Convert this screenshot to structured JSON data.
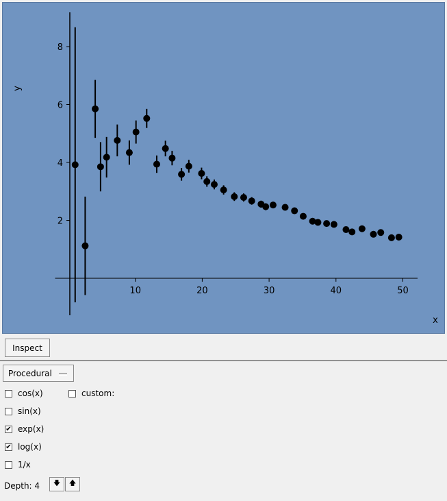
{
  "chart_data": {
    "type": "scatter",
    "error_bars": true,
    "xlabel": "x",
    "ylabel": "y",
    "xlim": [
      -2,
      52
    ],
    "ylim": [
      -1.3,
      9.2
    ],
    "xticks": [
      10,
      20,
      30,
      40,
      50
    ],
    "yticks": [
      2,
      4,
      6,
      8
    ],
    "grid": false,
    "points": [
      {
        "x": 1.0,
        "y": 3.92,
        "err": 4.75
      },
      {
        "x": 2.5,
        "y": 1.12,
        "err": 1.7
      },
      {
        "x": 4.0,
        "y": 5.85,
        "err": 1.0
      },
      {
        "x": 4.8,
        "y": 3.85,
        "err": 0.85
      },
      {
        "x": 5.7,
        "y": 4.18,
        "err": 0.7
      },
      {
        "x": 7.3,
        "y": 4.76,
        "err": 0.55
      },
      {
        "x": 9.1,
        "y": 4.34,
        "err": 0.42
      },
      {
        "x": 10.1,
        "y": 5.05,
        "err": 0.4
      },
      {
        "x": 11.7,
        "y": 5.52,
        "err": 0.33
      },
      {
        "x": 13.2,
        "y": 3.94,
        "err": 0.3
      },
      {
        "x": 14.5,
        "y": 4.48,
        "err": 0.27
      },
      {
        "x": 15.5,
        "y": 4.15,
        "err": 0.25
      },
      {
        "x": 16.9,
        "y": 3.59,
        "err": 0.22
      },
      {
        "x": 18.0,
        "y": 3.87,
        "err": 0.22
      },
      {
        "x": 19.9,
        "y": 3.62,
        "err": 0.2
      },
      {
        "x": 20.7,
        "y": 3.34,
        "err": 0.18
      },
      {
        "x": 21.8,
        "y": 3.24,
        "err": 0.17
      },
      {
        "x": 23.2,
        "y": 3.05,
        "err": 0.16
      },
      {
        "x": 24.8,
        "y": 2.82,
        "err": 0.15
      },
      {
        "x": 26.2,
        "y": 2.79,
        "err": 0.14
      },
      {
        "x": 27.4,
        "y": 2.67,
        "err": 0.13
      },
      {
        "x": 28.8,
        "y": 2.56,
        "err": 0.12
      },
      {
        "x": 29.5,
        "y": 2.47,
        "err": 0.12
      },
      {
        "x": 30.6,
        "y": 2.53,
        "err": 0.11
      },
      {
        "x": 32.4,
        "y": 2.45,
        "err": 0.1
      },
      {
        "x": 33.8,
        "y": 2.33,
        "err": 0.1
      },
      {
        "x": 35.1,
        "y": 2.14,
        "err": 0.09
      },
      {
        "x": 36.5,
        "y": 1.97,
        "err": 0.09
      },
      {
        "x": 37.3,
        "y": 1.93,
        "err": 0.08
      },
      {
        "x": 38.6,
        "y": 1.89,
        "err": 0.08
      },
      {
        "x": 39.7,
        "y": 1.86,
        "err": 0.08
      },
      {
        "x": 41.5,
        "y": 1.68,
        "err": 0.07
      },
      {
        "x": 42.4,
        "y": 1.6,
        "err": 0.07
      },
      {
        "x": 43.9,
        "y": 1.71,
        "err": 0.07
      },
      {
        "x": 45.6,
        "y": 1.52,
        "err": 0.06
      },
      {
        "x": 46.7,
        "y": 1.58,
        "err": 0.06
      },
      {
        "x": 48.3,
        "y": 1.4,
        "err": 0.06
      },
      {
        "x": 49.4,
        "y": 1.42,
        "err": 0.06
      }
    ]
  },
  "controls": {
    "inspect_label": "Inspect",
    "mode": "Procedural",
    "checkboxes": [
      {
        "label": "cos(x)",
        "checked": false
      },
      {
        "label": "sin(x)",
        "checked": false
      },
      {
        "label": "exp(x)",
        "checked": true
      },
      {
        "label": "log(x)",
        "checked": true
      },
      {
        "label": "1/x",
        "checked": false
      },
      {
        "label": "custom:",
        "checked": false
      }
    ],
    "depth_label": "Depth: 4",
    "down_icon": "arrow-down-icon",
    "up_icon": "arrow-up-icon",
    "check_glyph": "✔",
    "down_glyph": "🡇",
    "up_glyph": "🡅"
  }
}
